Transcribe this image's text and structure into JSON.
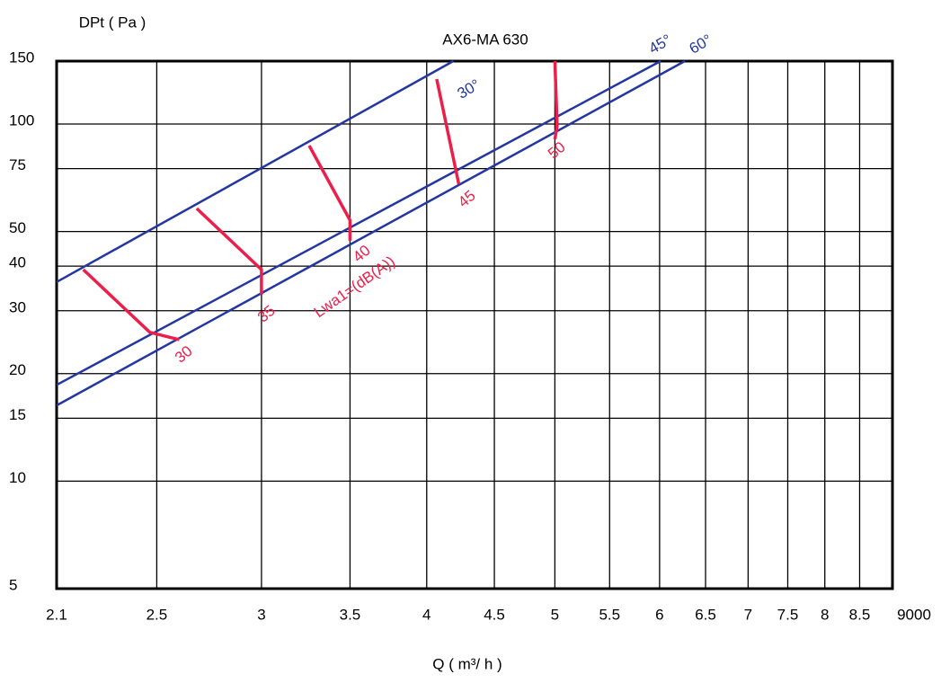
{
  "chart_data": {
    "type": "line",
    "title": "AX6-MA 630",
    "y_label": "DPt ( Pa )",
    "x_label": "Q ( m³/ h )",
    "x_scale": "log",
    "y_scale": "log",
    "grid": true,
    "xlim": [
      2.1,
      9
    ],
    "ylim": [
      5,
      150
    ],
    "xticks": [
      2.1,
      2.5,
      3,
      3.5,
      4,
      4.5,
      5,
      5.5,
      6,
      6.5,
      7,
      7.5,
      8,
      8.5,
      {
        "value": 9,
        "label": "9000"
      }
    ],
    "yticks": [
      5,
      10,
      15,
      20,
      30,
      40,
      50,
      75,
      100,
      150
    ],
    "annotation": "Lwa1=(dB(A))",
    "series": [
      {
        "name": "30°",
        "color": "#2436a0",
        "x": [
          2.1,
          4.19
        ],
        "values": [
          36.1,
          150
        ]
      },
      {
        "name": "45°",
        "color": "#2436a0",
        "x": [
          2.1,
          6.01
        ],
        "values": [
          18.6,
          150
        ]
      },
      {
        "name": "60°",
        "color": "#2436a0",
        "x": [
          2.1,
          6.27
        ],
        "values": [
          16.3,
          150
        ]
      },
      {
        "name": "30",
        "color": "#ec1f4b",
        "x": [
          2.2,
          2.47,
          2.6
        ],
        "values": [
          39.1,
          26.1,
          24.9
        ]
      },
      {
        "name": "35",
        "color": "#ec1f4b",
        "x": [
          2.68,
          3,
          3
        ],
        "values": [
          58,
          39.1,
          33.3
        ]
      },
      {
        "name": "40",
        "color": "#ec1f4b",
        "x": [
          3.26,
          3.5,
          3.5
        ],
        "values": [
          87,
          53.8,
          47.1
        ]
      },
      {
        "name": "45",
        "color": "#ec1f4b",
        "x": [
          4.07,
          4.23
        ],
        "values": [
          133.6,
          67.8
        ]
      },
      {
        "name": "50",
        "color": "#ec1f4b",
        "x": [
          5,
          5.02,
          5
        ],
        "values": [
          150,
          98.9,
          90.6
        ]
      }
    ]
  }
}
